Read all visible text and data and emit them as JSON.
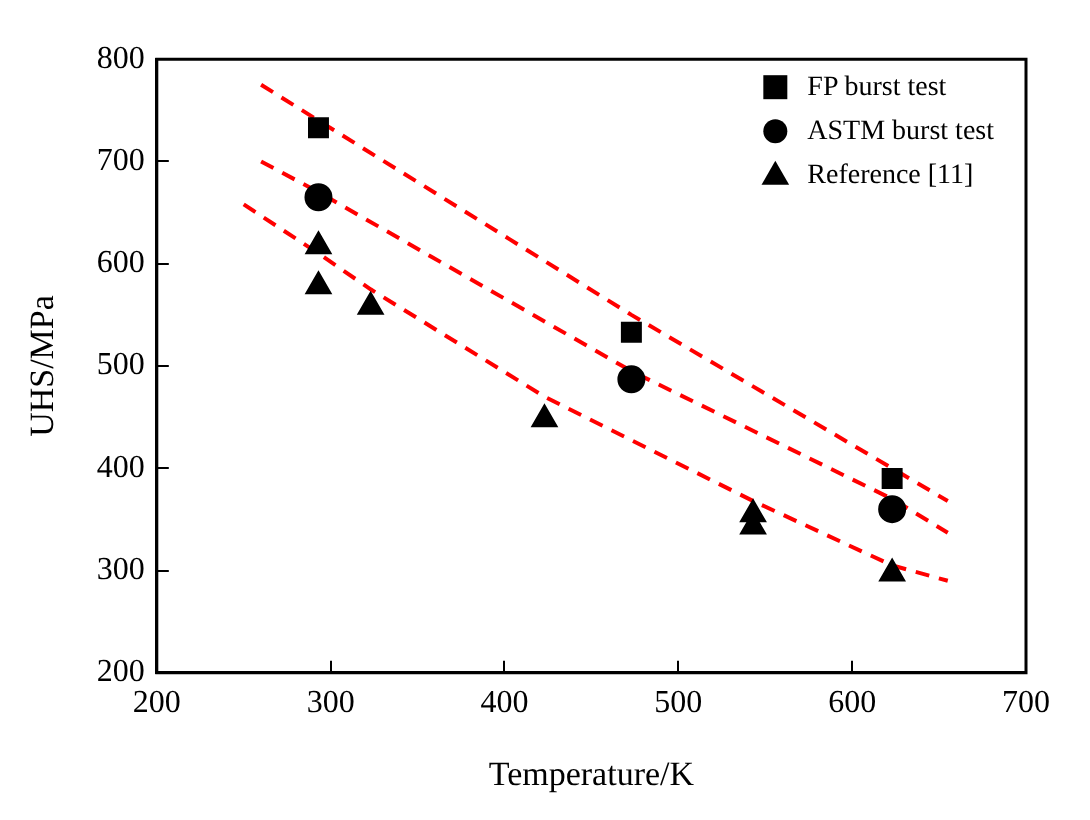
{
  "chart_data": {
    "type": "scatter",
    "xlabel": "Temperature/K",
    "ylabel": "UHS/MPa",
    "xlim": [
      200,
      700
    ],
    "xticks": [
      200,
      300,
      400,
      500,
      600,
      700
    ],
    "ylim": [
      200,
      800
    ],
    "yticks": [
      200,
      300,
      400,
      500,
      600,
      700,
      800
    ],
    "grid": false,
    "legend": "top right",
    "series": [
      {
        "name": "FP burst test",
        "color": "#000000",
        "marker": "square",
        "x": [
          293,
          473,
          623
        ],
        "values": [
          733,
          533,
          390
        ]
      },
      {
        "name": "ASTM burst test",
        "color": "#000000",
        "marker": "circle",
        "x": [
          293,
          473,
          623
        ],
        "values": [
          665,
          487,
          360
        ]
      },
      {
        "name": "Reference [11]",
        "color": "#000000",
        "marker": "triangle",
        "x": [
          293,
          293,
          323,
          423,
          543,
          543,
          623
        ],
        "values": [
          617,
          578,
          558,
          448,
          355,
          343,
          297
        ]
      },
      {
        "type": "line",
        "color": "#ff0000",
        "line_style": "dashed",
        "marker": "none",
        "x": [
          260,
          293,
          473,
          623,
          655
        ],
        "values": [
          775,
          740,
          550,
          400,
          368
        ]
      },
      {
        "type": "line",
        "color": "#ff0000",
        "line_style": "dashed",
        "marker": "none",
        "x": [
          260,
          293,
          473,
          623,
          655
        ],
        "values": [
          700,
          670,
          495,
          370,
          337
        ]
      },
      {
        "type": "line",
        "color": "#ff0000",
        "line_style": "dashed",
        "marker": "none",
        "x": [
          250,
          293,
          323,
          423,
          543,
          623,
          655
        ],
        "values": [
          658,
          610,
          575,
          470,
          368,
          305,
          290
        ]
      }
    ]
  }
}
